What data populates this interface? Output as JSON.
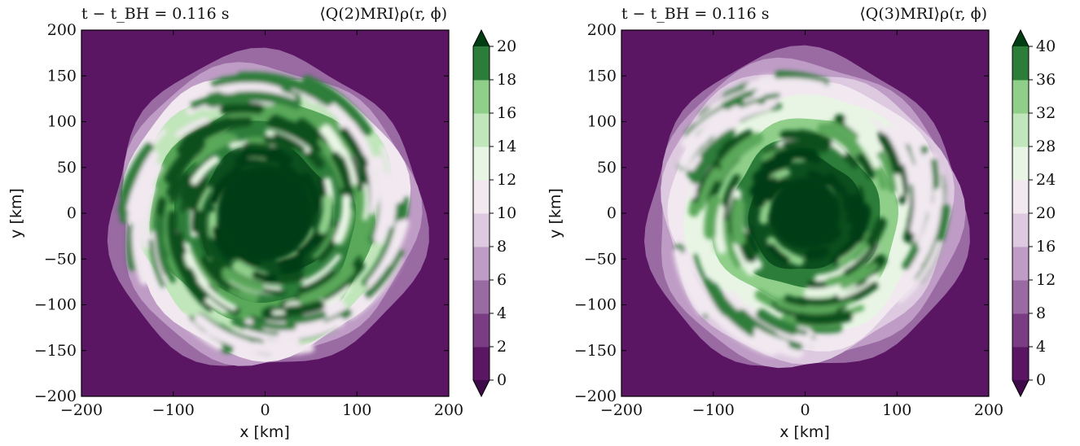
{
  "colors": {
    "background": "#5a1563",
    "palette": [
      "#3f0a4a",
      "#5a1563",
      "#7a3d83",
      "#9a6aa3",
      "#bf9cc6",
      "#ddc9e0",
      "#f1e8f0",
      "#e8f5e4",
      "#c1e6bb",
      "#8fcf8a",
      "#5aa85a",
      "#2d7d3a",
      "#0c4f1f",
      "#003d12"
    ]
  },
  "chart_data": [
    {
      "type": "heatmap",
      "title_left": "t − t_BH = 0.116 s",
      "title_right": "⟨Q(2)MRI⟩ρ(r, ϕ)",
      "xlabel": "x [km]",
      "ylabel": "y [km]",
      "xlim": [
        -200,
        200
      ],
      "ylim": [
        -200,
        200
      ],
      "xticks": [
        "−200",
        "−100",
        "0",
        "100",
        "200"
      ],
      "yticks": [
        "200",
        "150",
        "100",
        "50",
        "0",
        "−50",
        "−100",
        "−150",
        "−200"
      ],
      "colorbar": {
        "levels": [
          0,
          2,
          4,
          6,
          8,
          10,
          12,
          14,
          16,
          18,
          20
        ],
        "ticks": [
          "0",
          "2",
          "4",
          "6",
          "8",
          "10",
          "12",
          "14",
          "16",
          "18",
          "20"
        ],
        "extend": "both",
        "colormap": "PRGn"
      },
      "disk": {
        "outer_radius_km": 165,
        "dense_core_radius_km": 95,
        "spiral_arms": 4
      }
    },
    {
      "type": "heatmap",
      "title_left": "t − t_BH = 0.116 s",
      "title_right": "⟨Q(3)MRI⟩ρ(r, ϕ)",
      "xlabel": "x [km]",
      "ylabel": "y [km]",
      "xlim": [
        -200,
        200
      ],
      "ylim": [
        -200,
        200
      ],
      "xticks": [
        "−200",
        "−100",
        "0",
        "100",
        "200"
      ],
      "yticks": [
        "200",
        "150",
        "100",
        "50",
        "0",
        "−50",
        "−100",
        "−150",
        "−200"
      ],
      "colorbar": {
        "levels": [
          0,
          4,
          8,
          12,
          16,
          20,
          24,
          28,
          32,
          36,
          40
        ],
        "ticks": [
          "0",
          "4",
          "8",
          "12",
          "16",
          "20",
          "24",
          "28",
          "32",
          "36",
          "40"
        ],
        "extend": "both",
        "colormap": "PRGn"
      },
      "disk": {
        "outer_radius_km": 165,
        "dense_core_radius_km": 70,
        "spiral_arms": 3
      }
    }
  ]
}
